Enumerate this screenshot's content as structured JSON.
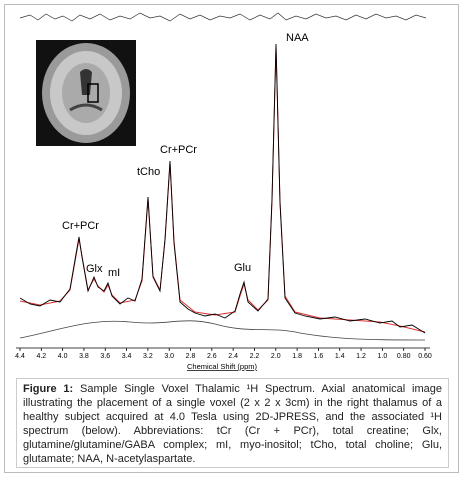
{
  "chart_data": {
    "type": "spectrum",
    "x_label": "Chemical Shift (ppm)",
    "annotations": [
      "Cr+PCr",
      "Glx",
      "mI",
      "tCho",
      "Cr+PCr",
      "Glu",
      "NAA"
    ],
    "xlim": [
      4.4,
      0.6
    ],
    "xticks": [
      4.4,
      4.2,
      {
        "value": 4,
        "label": "4.0"
      },
      3.8,
      3.6,
      3.4,
      3.2,
      {
        "value": 3,
        "label": "3.0"
      },
      2.8,
      2.6,
      2.4,
      2.2,
      {
        "value": 2,
        "label": "2.0"
      },
      1.8,
      1.6,
      1.4,
      1.2,
      {
        "value": 1,
        "label": "1.0"
      },
      {
        "value": 0.8,
        "label": "0.80"
      },
      {
        "value": 0.6,
        "label": "0.60"
      }
    ]
  },
  "caption": {
    "label": "Figure 1:",
    "text": "Sample Single Voxel Thalamic ¹H Spectrum. Axial anatomical image illustrating the placement of a single voxel (2 x 2 x 3cm) in the right thalamus of a healthy subject acquired at 4.0 Tesla using 2D-JPRESS, and the associated ¹H spectrum (below). Abbreviations: tCr (Cr + PCr), total creatine; Glx, glutamine/glutamine/GABA complex; mI, myo-inositol; tCho, total choline; Glu, glutamate; NAA, N-acetylaspartate."
  }
}
